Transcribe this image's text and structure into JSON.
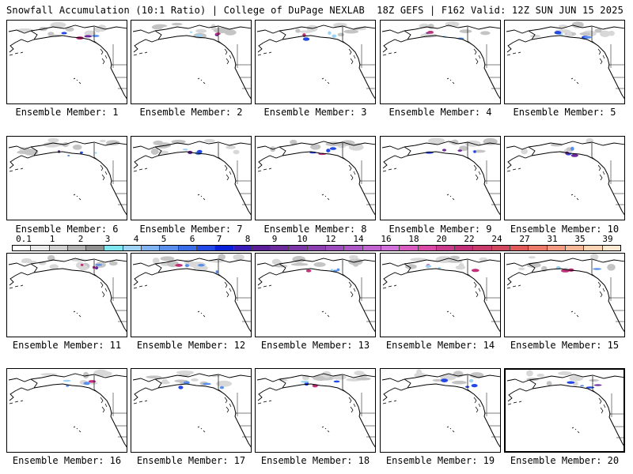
{
  "header": {
    "title_left": "Snowfall Accumulation (10:1 Ratio) | College of DuPage NEXLAB",
    "title_right": "18Z GEFS | F162 Valid: 12Z SUN JUN 15 2025"
  },
  "members": [
    {
      "label": "Ensemble Member: 1"
    },
    {
      "label": "Ensemble Member: 2"
    },
    {
      "label": "Ensemble Member: 3"
    },
    {
      "label": "Ensemble Member: 4"
    },
    {
      "label": "Ensemble Member: 5"
    },
    {
      "label": "Ensemble Member: 6"
    },
    {
      "label": "Ensemble Member: 7"
    },
    {
      "label": "Ensemble Member: 8"
    },
    {
      "label": "Ensemble Member: 9"
    },
    {
      "label": "Ensemble Member: 10"
    },
    {
      "label": "Ensemble Member: 11"
    },
    {
      "label": "Ensemble Member: 12"
    },
    {
      "label": "Ensemble Member: 13"
    },
    {
      "label": "Ensemble Member: 14"
    },
    {
      "label": "Ensemble Member: 15"
    },
    {
      "label": "Ensemble Member: 16"
    },
    {
      "label": "Ensemble Member: 17"
    },
    {
      "label": "Ensemble Member: 18"
    },
    {
      "label": "Ensemble Member: 19"
    },
    {
      "label": "Ensemble Member: 20"
    }
  ],
  "colorbar": {
    "labels": [
      "0.1",
      "1",
      "2",
      "3",
      "4",
      "5",
      "6",
      "7",
      "8",
      "9",
      "10",
      "12",
      "14",
      "16",
      "18",
      "20",
      "22",
      "24",
      "27",
      "31",
      "35",
      "39"
    ],
    "colors": [
      "#ffffff",
      "#e8e8e8",
      "#cfcfcf",
      "#b0b0b0",
      "#8f8f8f",
      "#7fe6f0",
      "#9ed3f5",
      "#7fb3f2",
      "#5a90ec",
      "#3a6ee8",
      "#2248e6",
      "#0a1fd8",
      "#3a1bb8",
      "#5a1e9a",
      "#6a2a9c",
      "#7a35a6",
      "#8a40b0",
      "#9c4cbc",
      "#ae58c8",
      "#c064d0",
      "#d070d8",
      "#d85cc0",
      "#d84aa6",
      "#c83a8c",
      "#c02f78",
      "#c83a6a",
      "#d0485e",
      "#e05a5a",
      "#ec7a6a",
      "#f49a80",
      "#f8b898",
      "#fcd4b4",
      "#fde8d0"
    ]
  }
}
